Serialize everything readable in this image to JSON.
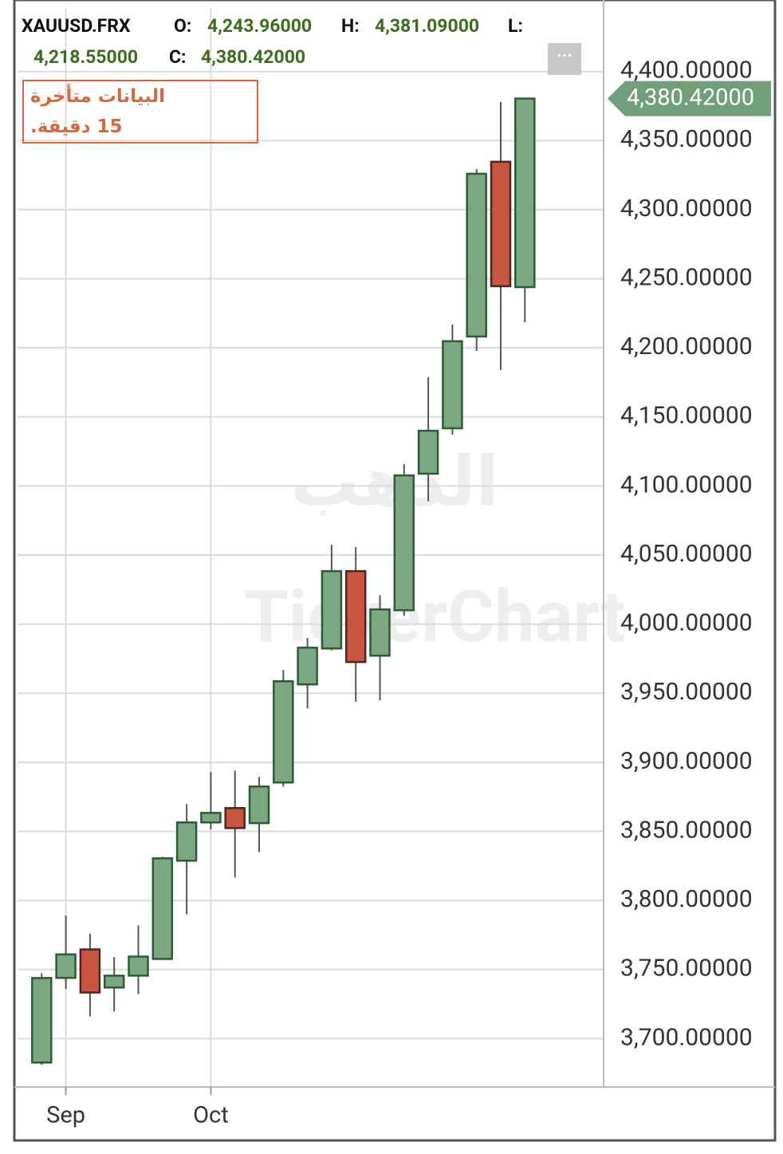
{
  "chart_data": {
    "type": "candlestick",
    "header": {
      "symbol": "XAUUSD.FRX",
      "fields": [
        {
          "key": "O:",
          "value": 4243.96,
          "label": "4,243.96000"
        },
        {
          "key": "H:",
          "value": 4381.09,
          "label": "4,381.09000"
        },
        {
          "key": "L:",
          "value": 4218.55,
          "label": "4,218.55000"
        },
        {
          "key": "C:",
          "value": 4380.42,
          "label": "4,380.42000"
        }
      ]
    },
    "notice": "البيانات متأخرة 15 دقيقة.",
    "watermarks": [
      "الذهب",
      "TickerChart"
    ],
    "menu": "···",
    "last_price": {
      "value": 4380.42,
      "label": "4,380.42000"
    },
    "categories": [
      null,
      "Sep",
      null,
      null,
      null,
      null,
      null,
      "Oct",
      null,
      null,
      null,
      null,
      null,
      null,
      null,
      null,
      null,
      null,
      null,
      null,
      null
    ],
    "open": [
      3682.7,
      3744.0,
      3764.6,
      3737.0,
      3745.6,
      3757.7,
      3828.8,
      3856.5,
      3866.9,
      3856.0,
      3885.4,
      3956.4,
      3982.4,
      4038.4,
      3977.2,
      4010.1,
      4108.9,
      4141.8,
      4208.2,
      4334.7,
      4243.96
    ],
    "high": [
      3747.4,
      3789.0,
      3776.0,
      3759.0,
      3782.0,
      3831.6,
      3869.8,
      3892.9,
      3894.0,
      3889.4,
      3966.8,
      3990.0,
      4057.5,
      4055.7,
      4021.0,
      4115.8,
      4178.8,
      4216.9,
      4329.5,
      4378.0,
      4381.09
    ],
    "low": [
      3681.0,
      3736.0,
      3716.0,
      3719.6,
      3732.3,
      3757.0,
      3790.0,
      3851.3,
      3816.6,
      3835.0,
      3882.5,
      3939.0,
      3981.0,
      3943.7,
      3944.9,
      4006.0,
      4089.0,
      4137.2,
      4197.8,
      4184.0,
      4218.55
    ],
    "close": [
      3743.9,
      3761.0,
      3733.4,
      3745.6,
      3759.4,
      3830.5,
      3856.5,
      3863.4,
      3852.4,
      3882.5,
      3958.7,
      3983.0,
      4038.4,
      3972.6,
      4010.7,
      4107.7,
      4140.0,
      4204.8,
      4326.0,
      4244.6,
      4380.42
    ],
    "up_color": "#7aa882",
    "down_color": "#c8553f",
    "ylim": [
      3665,
      4446
    ],
    "yticks": [
      {
        "value": 3700,
        "label": "3,700.00000"
      },
      {
        "value": 3750,
        "label": "3,750.00000"
      },
      {
        "value": 3800,
        "label": "3,800.00000"
      },
      {
        "value": 3850,
        "label": "3,850.00000"
      },
      {
        "value": 3900,
        "label": "3,900.00000"
      },
      {
        "value": 3950,
        "label": "3,950.00000"
      },
      {
        "value": 4000,
        "label": "4,000.00000"
      },
      {
        "value": 4050,
        "label": "4,050.00000"
      },
      {
        "value": 4100,
        "label": "4,100.00000"
      },
      {
        "value": 4150,
        "label": "4,150.00000"
      },
      {
        "value": 4200,
        "label": "4,200.00000"
      },
      {
        "value": 4250,
        "label": "4,250.00000"
      },
      {
        "value": 4300,
        "label": "4,300.00000"
      },
      {
        "value": 4350,
        "label": "4,350.00000"
      },
      {
        "value": 4400,
        "label": "4,400.00000"
      }
    ],
    "grid": true
  }
}
